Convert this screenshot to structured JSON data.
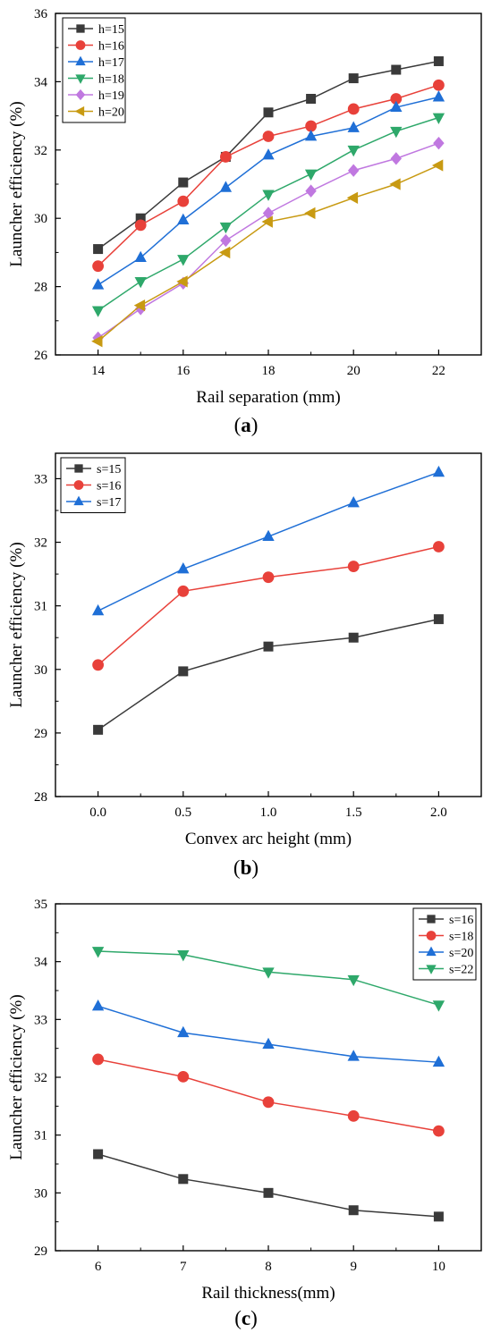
{
  "colors": {
    "black": "#3a3a3a",
    "red": "#e8413a",
    "blue": "#1f6fd6",
    "green": "#2ea86a",
    "purple": "#c078e0",
    "gold": "#c89a12"
  },
  "captions": [
    "a",
    "b",
    "c"
  ],
  "chart_data": [
    {
      "type": "line",
      "xlabel": "Rail separation (mm)",
      "ylabel": "Launcher efficiency (%)",
      "x": [
        14,
        15,
        16,
        17,
        18,
        19,
        20,
        21,
        22
      ],
      "xlim": [
        13,
        23
      ],
      "ylim": [
        26,
        36
      ],
      "xticks": [
        "14",
        "16",
        "18",
        "20",
        "22"
      ],
      "yticks": [
        "26",
        "28",
        "30",
        "32",
        "34",
        "36"
      ],
      "legend_position": "top-left",
      "series": [
        {
          "name": "h=15",
          "marker": "square",
          "color": "#3a3a3a",
          "values": [
            29.1,
            30.0,
            31.05,
            31.8,
            33.1,
            33.5,
            34.1,
            34.35,
            34.6
          ]
        },
        {
          "name": "h=16",
          "marker": "circle",
          "color": "#e8413a",
          "values": [
            28.6,
            29.8,
            30.5,
            31.8,
            32.4,
            32.7,
            33.2,
            33.5,
            33.9
          ]
        },
        {
          "name": "h=17",
          "marker": "triangle-up",
          "color": "#1f6fd6",
          "values": [
            28.05,
            28.85,
            29.95,
            30.9,
            31.85,
            32.4,
            32.65,
            33.25,
            33.55
          ]
        },
        {
          "name": "h=18",
          "marker": "triangle-down",
          "color": "#2ea86a",
          "values": [
            27.3,
            28.15,
            28.8,
            29.75,
            30.7,
            31.3,
            32.0,
            32.55,
            32.95
          ]
        },
        {
          "name": "h=19",
          "marker": "diamond",
          "color": "#c078e0",
          "values": [
            26.5,
            27.35,
            28.1,
            29.35,
            30.15,
            30.8,
            31.4,
            31.75,
            32.2
          ]
        },
        {
          "name": "h=20",
          "marker": "triangle-left",
          "color": "#c89a12",
          "values": [
            26.4,
            27.45,
            28.15,
            29.0,
            29.9,
            30.15,
            30.6,
            31.0,
            31.55
          ]
        }
      ]
    },
    {
      "type": "line",
      "xlabel": "Convex arc height (mm)",
      "ylabel": "Launcher efficiency (%)",
      "x": [
        0.0,
        0.5,
        1.0,
        1.5,
        2.0
      ],
      "xlim": [
        -0.25,
        2.25
      ],
      "ylim": [
        28,
        33.4
      ],
      "xticks": [
        "0.0",
        "0.5",
        "1.0",
        "1.5",
        "2.0"
      ],
      "yticks": [
        "28",
        "29",
        "30",
        "31",
        "32",
        "33"
      ],
      "legend_position": "top-left",
      "series": [
        {
          "name": "s=15",
          "marker": "square",
          "color": "#3a3a3a",
          "values": [
            29.05,
            29.97,
            30.36,
            30.5,
            30.79
          ]
        },
        {
          "name": "s=16",
          "marker": "circle",
          "color": "#e8413a",
          "values": [
            30.07,
            31.23,
            31.45,
            31.62,
            31.93
          ]
        },
        {
          "name": "s=17",
          "marker": "triangle-up",
          "color": "#1f6fd6",
          "values": [
            30.92,
            31.58,
            32.09,
            32.62,
            33.1
          ]
        }
      ]
    },
    {
      "type": "line",
      "xlabel": "Rail thickness(mm)",
      "ylabel": "Launcher efficiency (%)",
      "x": [
        6,
        7,
        8,
        9,
        10
      ],
      "xlim": [
        5.5,
        10.5
      ],
      "ylim": [
        29,
        35
      ],
      "xticks": [
        "6",
        "7",
        "8",
        "9",
        "10"
      ],
      "yticks": [
        "29",
        "30",
        "31",
        "32",
        "33",
        "34",
        "35"
      ],
      "legend_position": "top-right",
      "series": [
        {
          "name": "s=16",
          "marker": "square",
          "color": "#3a3a3a",
          "values": [
            30.67,
            30.24,
            30.0,
            29.7,
            29.59
          ]
        },
        {
          "name": "s=18",
          "marker": "circle",
          "color": "#e8413a",
          "values": [
            32.31,
            32.01,
            31.57,
            31.33,
            31.07
          ]
        },
        {
          "name": "s=20",
          "marker": "triangle-up",
          "color": "#1f6fd6",
          "values": [
            33.23,
            32.77,
            32.57,
            32.36,
            32.26
          ]
        },
        {
          "name": "s=22",
          "marker": "triangle-down",
          "color": "#2ea86a",
          "values": [
            34.18,
            34.12,
            33.82,
            33.69,
            33.25
          ]
        }
      ]
    }
  ]
}
